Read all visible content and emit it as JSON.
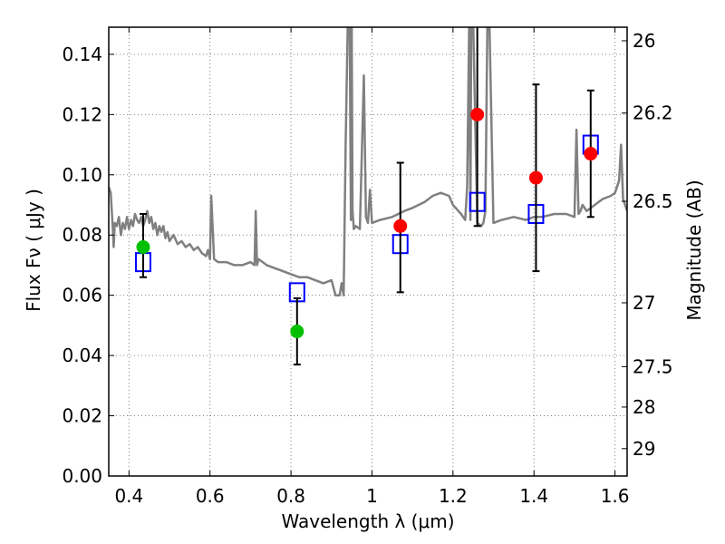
{
  "chart_data": {
    "type": "scatter",
    "xlabel": "Wavelength  λ (μm)",
    "ylabel": "Flux  Fν  ( μJy )",
    "y2label": "Magnitude (AB)",
    "xlim": [
      0.35,
      1.63
    ],
    "ylim": [
      0.0,
      0.149
    ],
    "grid": true,
    "x_ticks": [
      "0.4",
      "0.6",
      "0.8",
      "1",
      "1.2",
      "1.4",
      "1.6"
    ],
    "x_tick_values": [
      0.4,
      0.6,
      0.8,
      1.0,
      1.2,
      1.4,
      1.6
    ],
    "y_ticks": [
      "0.00",
      "0.02",
      "0.04",
      "0.06",
      "0.08",
      "0.10",
      "0.12",
      "0.14"
    ],
    "y_tick_values": [
      0.0,
      0.02,
      0.04,
      0.06,
      0.08,
      0.1,
      0.12,
      0.14
    ],
    "y2_ticks": [
      "26",
      "26.2",
      "26.5",
      "27",
      "27.5",
      "28",
      "29"
    ],
    "y2_tick_values": [
      0.1445,
      0.1205,
      0.0912,
      0.0575,
      0.0363,
      0.0229,
      0.0091
    ],
    "colors": {
      "model": "#808080",
      "detection": "#ff0000",
      "optical": "#00c000",
      "model_box": "#0000ff",
      "error": "#000000",
      "grid": "#808080"
    },
    "model_spectrum": {
      "x": [
        0.35,
        0.355,
        0.36,
        0.362,
        0.365,
        0.37,
        0.375,
        0.38,
        0.385,
        0.39,
        0.395,
        0.4,
        0.405,
        0.41,
        0.415,
        0.42,
        0.425,
        0.43,
        0.435,
        0.44,
        0.445,
        0.45,
        0.455,
        0.46,
        0.465,
        0.47,
        0.475,
        0.48,
        0.485,
        0.49,
        0.495,
        0.5,
        0.51,
        0.52,
        0.53,
        0.54,
        0.55,
        0.56,
        0.57,
        0.58,
        0.59,
        0.595,
        0.6,
        0.603,
        0.61,
        0.62,
        0.64,
        0.66,
        0.68,
        0.7,
        0.71,
        0.713,
        0.716,
        0.72,
        0.74,
        0.76,
        0.78,
        0.8,
        0.82,
        0.84,
        0.86,
        0.88,
        0.9,
        0.91,
        0.92,
        0.925,
        0.93,
        0.935,
        0.94,
        0.945,
        0.948,
        0.95,
        0.952,
        0.955,
        0.96,
        0.97,
        0.98,
        0.985,
        0.99,
        0.995,
        1.0,
        1.02,
        1.05,
        1.08,
        1.1,
        1.13,
        1.15,
        1.17,
        1.19,
        1.2,
        1.22,
        1.23,
        1.235,
        1.24,
        1.243,
        1.245,
        1.25,
        1.26,
        1.27,
        1.275,
        1.28,
        1.285,
        1.29,
        1.3,
        1.32,
        1.35,
        1.38,
        1.4,
        1.42,
        1.45,
        1.48,
        1.5,
        1.505,
        1.51,
        1.515,
        1.52,
        1.53,
        1.55,
        1.57,
        1.59,
        1.6,
        1.61,
        1.615,
        1.62,
        1.625,
        1.63
      ],
      "y": [
        0.096,
        0.094,
        0.082,
        0.076,
        0.084,
        0.083,
        0.086,
        0.08,
        0.084,
        0.082,
        0.086,
        0.082,
        0.085,
        0.083,
        0.087,
        0.085,
        0.084,
        0.086,
        0.083,
        0.085,
        0.088,
        0.084,
        0.086,
        0.082,
        0.084,
        0.08,
        0.083,
        0.081,
        0.083,
        0.079,
        0.081,
        0.078,
        0.08,
        0.077,
        0.078,
        0.076,
        0.077,
        0.075,
        0.076,
        0.074,
        0.073,
        0.075,
        0.072,
        0.093,
        0.072,
        0.071,
        0.071,
        0.07,
        0.07,
        0.071,
        0.07,
        0.088,
        0.07,
        0.072,
        0.07,
        0.069,
        0.068,
        0.067,
        0.066,
        0.066,
        0.065,
        0.064,
        0.065,
        0.06,
        0.06,
        0.064,
        0.06,
        0.11,
        0.15,
        0.15,
        0.085,
        0.15,
        0.088,
        0.082,
        0.083,
        0.082,
        0.133,
        0.086,
        0.084,
        0.095,
        0.084,
        0.085,
        0.086,
        0.088,
        0.089,
        0.091,
        0.093,
        0.094,
        0.093,
        0.09,
        0.087,
        0.085,
        0.096,
        0.15,
        0.085,
        0.15,
        0.15,
        0.084,
        0.083,
        0.084,
        0.088,
        0.15,
        0.15,
        0.084,
        0.085,
        0.086,
        0.085,
        0.086,
        0.086,
        0.087,
        0.087,
        0.086,
        0.115,
        0.087,
        0.088,
        0.09,
        0.088,
        0.09,
        0.092,
        0.093,
        0.094,
        0.098,
        0.11,
        0.092,
        0.09,
        0.088
      ],
      "style": "line"
    },
    "model_boxes": {
      "x": [
        0.435,
        0.815,
        1.07,
        1.26,
        1.405,
        1.54
      ],
      "y": [
        0.071,
        0.061,
        0.077,
        0.091,
        0.087,
        0.11
      ],
      "marker": "open-square"
    },
    "measurements": [
      {
        "x": 0.435,
        "y": 0.076,
        "yerr_low": 0.066,
        "yerr_high": 0.087,
        "group": "optical"
      },
      {
        "x": 0.815,
        "y": 0.048,
        "yerr_low": 0.037,
        "yerr_high": 0.059,
        "group": "optical"
      },
      {
        "x": 1.07,
        "y": 0.083,
        "yerr_low": 0.061,
        "yerr_high": 0.104,
        "group": "detection"
      },
      {
        "x": 1.26,
        "y": 0.12,
        "yerr_low": 0.083,
        "yerr_high": 0.16,
        "group": "detection"
      },
      {
        "x": 1.405,
        "y": 0.099,
        "yerr_low": 0.068,
        "yerr_high": 0.13,
        "group": "detection"
      },
      {
        "x": 1.54,
        "y": 0.107,
        "yerr_low": 0.086,
        "yerr_high": 0.128,
        "group": "detection"
      }
    ]
  }
}
